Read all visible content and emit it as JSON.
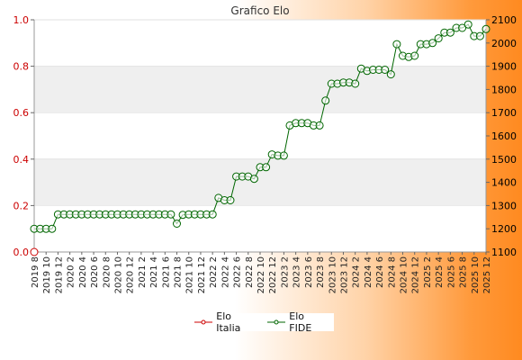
{
  "chart_data": {
    "type": "line",
    "title": "Grafico Elo",
    "left_axis": {
      "ticks": [
        "0.0",
        "0.2",
        "0.4",
        "0.6",
        "0.8",
        "1.0"
      ],
      "range": [
        0,
        1
      ],
      "color": "#cc0000"
    },
    "right_axis": {
      "ticks": [
        "1100",
        "1200",
        "1300",
        "1400",
        "1500",
        "1600",
        "1700",
        "1800",
        "1900",
        "2000",
        "2100"
      ],
      "range": [
        1100,
        2100
      ],
      "color": "#000000"
    },
    "x_tick_labels": [
      "2019 8",
      "2019 10",
      "2019 12",
      "2020 2",
      "2020 4",
      "2020 6",
      "2020 8",
      "2020 10",
      "2020 12",
      "2021 2",
      "2021 4",
      "2021 6",
      "2021 8",
      "2021 10",
      "2021 12",
      "2022 2",
      "2022 4",
      "2022 6",
      "2022 8",
      "2022 10",
      "2022 12",
      "2023 2",
      "2023 4",
      "2023 6",
      "2023 8",
      "2023 10",
      "2023 12",
      "2024 2",
      "2024 4",
      "2024 6",
      "2024 8",
      "2024 10",
      "2024 12",
      "2025 2",
      "2025 4",
      "2025 6",
      "2025 8",
      "2025 10",
      "2025 12"
    ],
    "grid": "horizontal bands",
    "legend_position": "bottom",
    "series": [
      {
        "name": "Elo Italia",
        "axis": "left",
        "color": "#cc0000",
        "values": [
          0
        ]
      },
      {
        "name": "Elo FIDE",
        "axis": "right",
        "color": "#006600",
        "values": [
          1200,
          1200,
          1200,
          1200,
          1262,
          1262,
          1262,
          1262,
          1262,
          1262,
          1262,
          1262,
          1262,
          1262,
          1262,
          1262,
          1262,
          1262,
          1262,
          1262,
          1262,
          1262,
          1262,
          1262,
          1222,
          1260,
          1262,
          1262,
          1262,
          1262,
          1262,
          1333,
          1323,
          1323,
          1425,
          1425,
          1425,
          1415,
          1465,
          1465,
          1520,
          1515,
          1515,
          1645,
          1655,
          1655,
          1655,
          1645,
          1645,
          1752,
          1825,
          1825,
          1830,
          1830,
          1825,
          1890,
          1880,
          1885,
          1885,
          1885,
          1865,
          1995,
          1945,
          1940,
          1945,
          1995,
          1995,
          2000,
          2020,
          2045,
          2045,
          2065,
          2065,
          2080,
          2030,
          2030,
          2060
        ]
      }
    ]
  }
}
